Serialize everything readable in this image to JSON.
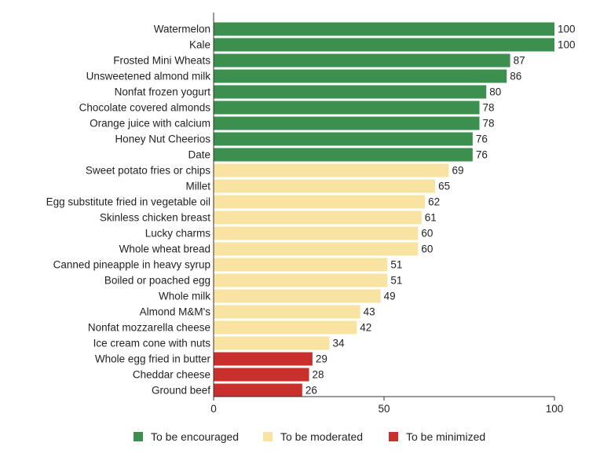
{
  "chart_data": {
    "type": "bar",
    "orientation": "horizontal",
    "categories": [
      "Watermelon",
      "Kale",
      "Frosted Mini Wheats",
      "Unsweetened almond milk",
      "Nonfat frozen yogurt",
      "Chocolate covered almonds",
      "Orange juice with calcium",
      "Honey Nut Cheerios",
      "Date",
      "Sweet potato fries or chips",
      "Millet",
      "Egg substitute fried in vegetable oil",
      "Skinless chicken breast",
      "Lucky charms",
      "Whole wheat bread",
      "Canned pineapple in heavy syrup",
      "Boiled or poached egg",
      "Whole milk",
      "Almond M&M's",
      "Nonfat mozzarella cheese",
      "Ice cream cone with nuts",
      "Whole egg fried in butter",
      "Cheddar cheese",
      "Ground beef"
    ],
    "values": [
      100,
      100,
      87,
      86,
      80,
      78,
      78,
      76,
      76,
      69,
      65,
      62,
      61,
      60,
      60,
      51,
      51,
      49,
      43,
      42,
      34,
      29,
      28,
      26
    ],
    "groups": [
      "encouraged",
      "encouraged",
      "encouraged",
      "encouraged",
      "encouraged",
      "encouraged",
      "encouraged",
      "encouraged",
      "encouraged",
      "moderated",
      "moderated",
      "moderated",
      "moderated",
      "moderated",
      "moderated",
      "moderated",
      "moderated",
      "moderated",
      "moderated",
      "moderated",
      "moderated",
      "minimized",
      "minimized",
      "minimized"
    ],
    "xlim": [
      0,
      100
    ],
    "xticks": [
      0,
      50,
      100
    ],
    "title": "",
    "xlabel": "",
    "ylabel": "",
    "legend": {
      "placement": "bottom",
      "entries": [
        {
          "key": "encouraged",
          "label": "To be encouraged"
        },
        {
          "key": "moderated",
          "label": "To be moderated"
        },
        {
          "key": "minimized",
          "label": "To be minimized"
        }
      ]
    },
    "colors": {
      "encouraged": "#3d8f50",
      "moderated": "#f8e3a3",
      "minimized": "#c9302c",
      "axis": "#333333"
    }
  }
}
